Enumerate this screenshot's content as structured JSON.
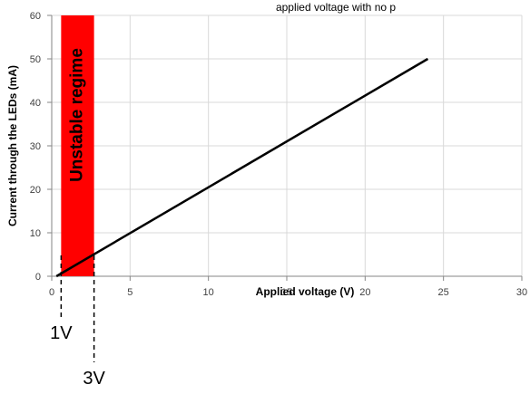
{
  "chart_data": {
    "type": "line",
    "title_partial": "applied voltage with no p",
    "xlabel": "Applied voltage (V)",
    "ylabel": "Current through the LEDs (mA)",
    "xlim": [
      0,
      30
    ],
    "ylim": [
      0,
      60
    ],
    "x_ticks": [
      0,
      5,
      10,
      15,
      20,
      25,
      30
    ],
    "y_ticks": [
      0,
      10,
      20,
      30,
      40,
      50,
      60
    ],
    "grid": true,
    "series": [
      {
        "x": [
          0.3,
          24
        ],
        "y": [
          0,
          50
        ],
        "color": "#000000"
      }
    ],
    "shaded_region": {
      "label": "Unstable regime",
      "x_range": [
        0.6,
        2.7
      ],
      "color": "#ff0000"
    },
    "markers": [
      {
        "x": 0.6,
        "label": "1V"
      },
      {
        "x": 2.7,
        "label": "3V"
      }
    ]
  }
}
